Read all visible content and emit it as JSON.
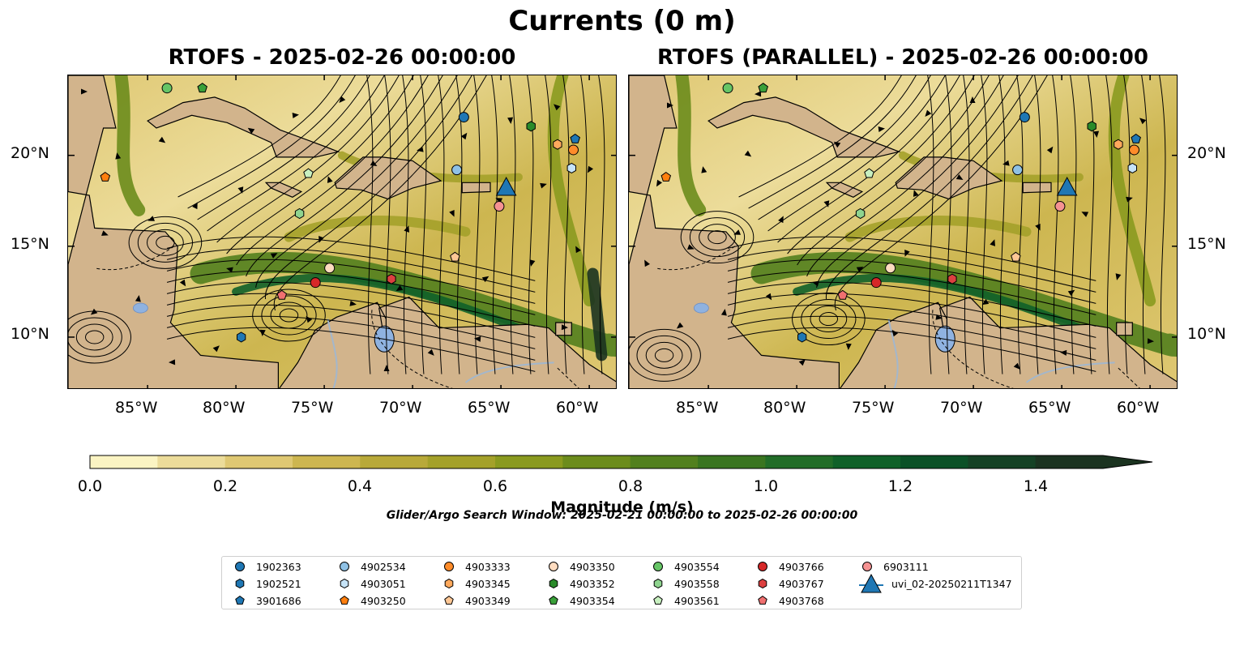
{
  "title": "Currents (0 m)",
  "panels": [
    {
      "title": "RTOFS - 2025-02-26 00:00:00"
    },
    {
      "title": "RTOFS (PARALLEL) - 2025-02-26 00:00:00"
    }
  ],
  "map": {
    "lon_range": [
      -89.5,
      -58.4
    ],
    "lat_range": [
      7.1,
      24.4
    ],
    "lon_ticks": [
      "85°W",
      "80°W",
      "75°W",
      "70°W",
      "65°W",
      "60°W"
    ],
    "lat_ticks": [
      "20°N",
      "15°N",
      "10°N"
    ],
    "land_color": "#d2b48c",
    "lake_color": "#8fb2e0"
  },
  "colorbar": {
    "label": "Magnitude (m/s)",
    "ticks": [
      "0.0",
      "0.2",
      "0.4",
      "0.6",
      "0.8",
      "1.0",
      "1.2",
      "1.4"
    ],
    "range": [
      0,
      1.5
    ],
    "colors": [
      "#fbf4c3",
      "#ecdc9a",
      "#dfc873",
      "#cdb650",
      "#b8a939",
      "#a4a12a",
      "#8a9a1f",
      "#6c8c1c",
      "#52801e",
      "#3a7520",
      "#226d28",
      "#106129",
      "#0b5127",
      "#154225",
      "#1b3320"
    ]
  },
  "search_window": "Glider/Argo Search Window: 2025-02-21 00:00:00 to 2025-02-26 00:00:00",
  "legend": [
    {
      "label": "1902363",
      "marker": "circle",
      "color": "#1f77b4"
    },
    {
      "label": "1902521",
      "marker": "hexagon",
      "color": "#1f77b4"
    },
    {
      "label": "3901686",
      "marker": "pentagon",
      "color": "#1f77b4"
    },
    {
      "label": "4902534",
      "marker": "circle",
      "color": "#8fc1e5"
    },
    {
      "label": "4903051",
      "marker": "hexagon",
      "color": "#c6e3f7"
    },
    {
      "label": "4903250",
      "marker": "pentagon",
      "color": "#ff7f0e"
    },
    {
      "label": "4903333",
      "marker": "circle",
      "color": "#ff8c2a"
    },
    {
      "label": "4903345",
      "marker": "hexagon",
      "color": "#ffa95c"
    },
    {
      "label": "4903349",
      "marker": "pentagon",
      "color": "#ffc795"
    },
    {
      "label": "4903350",
      "marker": "circle",
      "color": "#ffdcc0"
    },
    {
      "label": "4903352",
      "marker": "hexagon",
      "color": "#2a8a2a"
    },
    {
      "label": "4903354",
      "marker": "pentagon",
      "color": "#3aa03a"
    },
    {
      "label": "4903554",
      "marker": "circle",
      "color": "#66c566"
    },
    {
      "label": "4903558",
      "marker": "hexagon",
      "color": "#8fd48f"
    },
    {
      "label": "4903561",
      "marker": "pentagon",
      "color": "#c8f0c0"
    },
    {
      "label": "4903766",
      "marker": "circle",
      "color": "#d62728"
    },
    {
      "label": "4903767",
      "marker": "hexagon",
      "color": "#dc4040"
    },
    {
      "label": "4903768",
      "marker": "pentagon",
      "color": "#f07070"
    },
    {
      "label": "6903111",
      "marker": "circle",
      "color": "#f59292"
    },
    {
      "label": "uvi_02-20250211T1347",
      "marker": "triangle",
      "color": "#1f77b4"
    }
  ],
  "floats": [
    {
      "id": "1902363",
      "marker": "circle",
      "color": "#1f77b4",
      "lon": -67.1,
      "lat": 22.1
    },
    {
      "id": "1902521",
      "marker": "hexagon",
      "color": "#1f77b4",
      "lon": -79.7,
      "lat": 10.0
    },
    {
      "id": "3901686",
      "marker": "pentagon",
      "color": "#1f77b4",
      "lon": -60.8,
      "lat": 20.9
    },
    {
      "id": "4902534",
      "marker": "circle",
      "color": "#8fc1e5",
      "lon": -67.5,
      "lat": 19.2
    },
    {
      "id": "4903051",
      "marker": "hexagon",
      "color": "#c6e3f7",
      "lon": -61.0,
      "lat": 19.3
    },
    {
      "id": "4903250",
      "marker": "pentagon",
      "color": "#ff7f0e",
      "lon": -87.4,
      "lat": 18.8
    },
    {
      "id": "4903333",
      "marker": "circle",
      "color": "#ff8c2a",
      "lon": -60.9,
      "lat": 20.3
    },
    {
      "id": "4903345",
      "marker": "hexagon",
      "color": "#ffa95c",
      "lon": -61.8,
      "lat": 20.6
    },
    {
      "id": "4903349",
      "marker": "pentagon",
      "color": "#ffc795",
      "lon": -67.6,
      "lat": 14.4
    },
    {
      "id": "4903350",
      "marker": "circle",
      "color": "#ffdcc0",
      "lon": -74.7,
      "lat": 13.8
    },
    {
      "id": "4903352",
      "marker": "hexagon",
      "color": "#2a8a2a",
      "lon": -63.3,
      "lat": 21.6
    },
    {
      "id": "4903354",
      "marker": "pentagon",
      "color": "#3aa03a",
      "lon": -81.9,
      "lat": 23.7
    },
    {
      "id": "4903554",
      "marker": "circle",
      "color": "#66c566",
      "lon": -83.9,
      "lat": 23.7
    },
    {
      "id": "4903558",
      "marker": "hexagon",
      "color": "#8fd48f",
      "lon": -76.4,
      "lat": 16.8
    },
    {
      "id": "4903561",
      "marker": "pentagon",
      "color": "#c8f0c0",
      "lon": -75.9,
      "lat": 19.0
    },
    {
      "id": "4903766",
      "marker": "circle",
      "color": "#d62728",
      "lon": -75.5,
      "lat": 13.0
    },
    {
      "id": "4903767",
      "marker": "hexagon",
      "color": "#dc4040",
      "lon": -71.2,
      "lat": 13.2
    },
    {
      "id": "4903768",
      "marker": "pentagon",
      "color": "#f07070",
      "lon": -77.4,
      "lat": 12.3
    },
    {
      "id": "6903111",
      "marker": "circle",
      "color": "#f59292",
      "lon": -65.1,
      "lat": 17.2
    },
    {
      "id": "uvi_02-20250211T1347",
      "marker": "triangle",
      "color": "#1f77b4",
      "lon": -64.7,
      "lat": 18.2
    }
  ]
}
